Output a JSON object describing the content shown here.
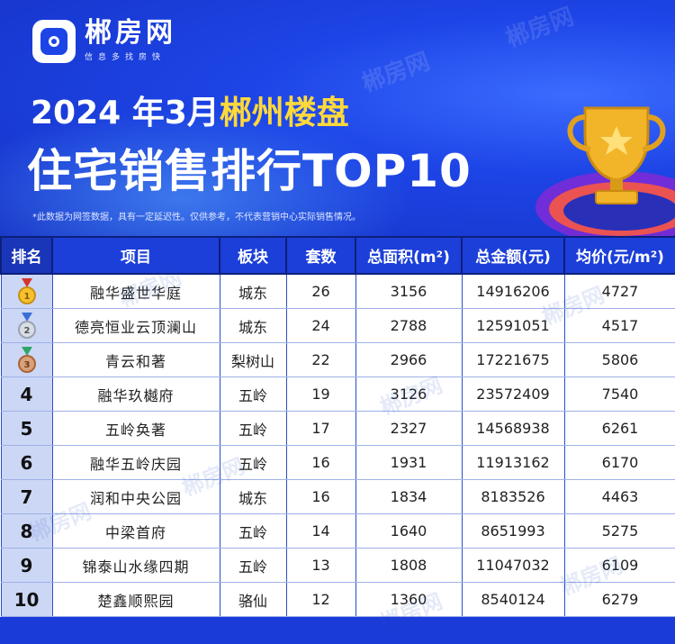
{
  "brand": {
    "name": "郴房网",
    "slogan": "信息多找房快"
  },
  "title": {
    "prefix": "2024 年3月",
    "highlight": "郴州楼盘",
    "main": "住宅销售排行TOP10"
  },
  "disclaimer": "*此数据为网签数据，具有一定延迟性。仅供参考，不代表营销中心实际销售情况。",
  "watermark": "郴房网",
  "colors": {
    "primary": "#1c3fd9",
    "highlight": "#ffd93a",
    "rank_bg": "#ccd7f6"
  },
  "table": {
    "headers": [
      "排名",
      "项目",
      "板块",
      "套数",
      "总面积(m²)",
      "总金额(元)",
      "均价(元/m²)"
    ],
    "rows": [
      {
        "rank": "1",
        "medal": "gold-medal-icon",
        "project": "融华盛世华庭",
        "area": "城东",
        "units": "26",
        "total_area": "3156",
        "total_amount": "14916206",
        "avg_price": "4727"
      },
      {
        "rank": "2",
        "medal": "silver-medal-icon",
        "project": "德亮恒业云顶澜山",
        "area": "城东",
        "units": "24",
        "total_area": "2788",
        "total_amount": "12591051",
        "avg_price": "4517"
      },
      {
        "rank": "3",
        "medal": "bronze-medal-icon",
        "project": "青云和著",
        "area": "梨树山",
        "units": "22",
        "total_area": "2966",
        "total_amount": "17221675",
        "avg_price": "5806"
      },
      {
        "rank": "4",
        "medal": "",
        "project": "融华玖樾府",
        "area": "五岭",
        "units": "19",
        "total_area": "3126",
        "total_amount": "23572409",
        "avg_price": "7540"
      },
      {
        "rank": "5",
        "medal": "",
        "project": "五岭奂著",
        "area": "五岭",
        "units": "17",
        "total_area": "2327",
        "total_amount": "14568938",
        "avg_price": "6261"
      },
      {
        "rank": "6",
        "medal": "",
        "project": "融华五岭庆园",
        "area": "五岭",
        "units": "16",
        "total_area": "1931",
        "total_amount": "11913162",
        "avg_price": "6170"
      },
      {
        "rank": "7",
        "medal": "",
        "project": "润和中央公园",
        "area": "城东",
        "units": "16",
        "total_area": "1834",
        "total_amount": "8183526",
        "avg_price": "4463"
      },
      {
        "rank": "8",
        "medal": "",
        "project": "中梁首府",
        "area": "五岭",
        "units": "14",
        "total_area": "1640",
        "total_amount": "8651993",
        "avg_price": "5275"
      },
      {
        "rank": "9",
        "medal": "",
        "project": "锦泰山水缘四期",
        "area": "五岭",
        "units": "13",
        "total_area": "1808",
        "total_amount": "11047032",
        "avg_price": "6109"
      },
      {
        "rank": "10",
        "medal": "",
        "project": "楚鑫顺熙园",
        "area": "骆仙",
        "units": "12",
        "total_area": "1360",
        "total_amount": "8540124",
        "avg_price": "6279"
      }
    ]
  }
}
